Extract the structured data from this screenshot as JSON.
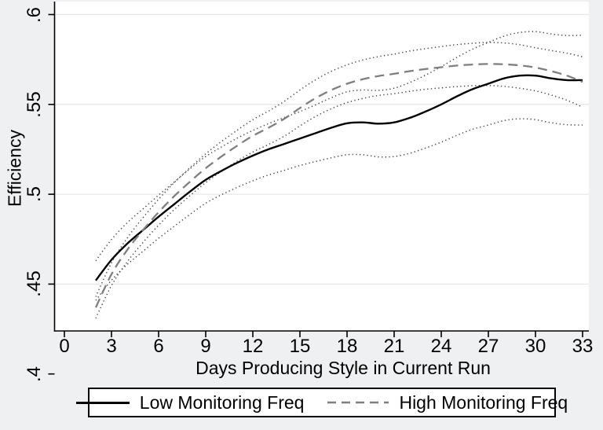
{
  "chart_data": {
    "type": "line",
    "title": "",
    "xlabel": "Days Producing Style in Current Run",
    "ylabel": "Efficiency",
    "xlim": [
      0,
      33
    ],
    "ylim": [
      0.4,
      0.6
    ],
    "grid": true,
    "legend_position": "bottom",
    "x_ticks": [
      {
        "label": "0",
        "value": 0
      },
      {
        "label": "3",
        "value": 3
      },
      {
        "label": "6",
        "value": 6
      },
      {
        "label": "9",
        "value": 9
      },
      {
        "label": "12",
        "value": 12
      },
      {
        "label": "15",
        "value": 15
      },
      {
        "label": "18",
        "value": 18
      },
      {
        "label": "21",
        "value": 21
      },
      {
        "label": "24",
        "value": 24
      },
      {
        "label": "27",
        "value": 27
      },
      {
        "label": "30",
        "value": 30
      },
      {
        "label": "33",
        "value": 33
      }
    ],
    "y_ticks": [
      {
        "label": ".6",
        "value": 0.6
      },
      {
        "label": ".55",
        "value": 0.55
      },
      {
        "label": ".5",
        "value": 0.5
      },
      {
        "label": ".45",
        "value": 0.45
      },
      {
        "label": ".4",
        "value": 0.4
      }
    ],
    "x": [
      2,
      3,
      4,
      5,
      6,
      7,
      8,
      9,
      10,
      11,
      12,
      13,
      14,
      15,
      16,
      17,
      18,
      19,
      20,
      21,
      22,
      23,
      24,
      25,
      26,
      27,
      28,
      29,
      30,
      31,
      32,
      33
    ],
    "series": [
      {
        "name": "Low Monitoring Freq",
        "role": "mean",
        "style": "solid",
        "color": "#000000",
        "values": [
          0.452,
          0.4635,
          0.4725,
          0.48,
          0.4875,
          0.4945,
          0.5015,
          0.508,
          0.513,
          0.5175,
          0.5215,
          0.525,
          0.528,
          0.531,
          0.534,
          0.537,
          0.5395,
          0.54,
          0.5393,
          0.54,
          0.5425,
          0.546,
          0.55,
          0.5545,
          0.5585,
          0.5615,
          0.5645,
          0.566,
          0.566,
          0.5645,
          0.5635,
          0.5635
        ]
      },
      {
        "name": "High Monitoring Freq",
        "role": "mean",
        "style": "dashed",
        "color": "#7f7f7f",
        "values": [
          0.437,
          0.4555,
          0.469,
          0.48,
          0.49,
          0.499,
          0.507,
          0.5145,
          0.521,
          0.527,
          0.5325,
          0.537,
          0.542,
          0.548,
          0.5535,
          0.558,
          0.5615,
          0.564,
          0.5658,
          0.567,
          0.5685,
          0.5697,
          0.5707,
          0.5716,
          0.5722,
          0.5725,
          0.5723,
          0.5717,
          0.5705,
          0.5685,
          0.566,
          0.5625
        ]
      },
      {
        "name": "Low Monitoring Freq CI upper",
        "role": "ci",
        "style": "dotted",
        "color": "#424242",
        "values": [
          0.463,
          0.4748,
          0.4841,
          0.4918,
          0.4995,
          0.5068,
          0.5142,
          0.521,
          0.5263,
          0.5312,
          0.5355,
          0.5393,
          0.5427,
          0.546,
          0.5498,
          0.5537,
          0.557,
          0.558,
          0.5578,
          0.559,
          0.5622,
          0.5663,
          0.571,
          0.5762,
          0.5808,
          0.5845,
          0.588,
          0.59,
          0.5905,
          0.5892,
          0.5883,
          0.5885
        ]
      },
      {
        "name": "Low Monitoring Freq CI lower",
        "role": "ci",
        "style": "dotted",
        "color": "#424242",
        "values": [
          0.441,
          0.4522,
          0.4609,
          0.4682,
          0.4755,
          0.4822,
          0.4888,
          0.495,
          0.4997,
          0.5038,
          0.5075,
          0.5107,
          0.5133,
          0.516,
          0.5182,
          0.5203,
          0.522,
          0.522,
          0.5208,
          0.521,
          0.5228,
          0.5257,
          0.529,
          0.5328,
          0.5362,
          0.5385,
          0.541,
          0.542,
          0.5415,
          0.5398,
          0.5387,
          0.5385
        ]
      },
      {
        "name": "High Monitoring Freq CI upper",
        "role": "ci",
        "style": "dotted",
        "color": "#424242",
        "values": [
          0.443,
          0.4618,
          0.4756,
          0.4869,
          0.4972,
          0.5065,
          0.5148,
          0.5225,
          0.5293,
          0.5356,
          0.5415,
          0.5463,
          0.5517,
          0.558,
          0.5637,
          0.5684,
          0.572,
          0.5747,
          0.5766,
          0.578,
          0.5797,
          0.581,
          0.5822,
          0.5833,
          0.584,
          0.5845,
          0.5842,
          0.5832,
          0.5815,
          0.58,
          0.5785,
          0.5765
        ]
      },
      {
        "name": "High Monitoring Freq CI lower",
        "role": "ci",
        "style": "dotted",
        "color": "#424242",
        "values": [
          0.431,
          0.4492,
          0.4624,
          0.4731,
          0.4828,
          0.4915,
          0.4992,
          0.5065,
          0.5127,
          0.5184,
          0.5235,
          0.5277,
          0.5323,
          0.538,
          0.5433,
          0.5476,
          0.551,
          0.5533,
          0.555,
          0.556,
          0.5573,
          0.5584,
          0.5592,
          0.5599,
          0.5604,
          0.5605,
          0.56,
          0.559,
          0.5575,
          0.5552,
          0.5523,
          0.5485
        ]
      }
    ],
    "legend": {
      "entries": [
        "Low Monitoring Freq",
        "High Monitoring Freq"
      ]
    }
  },
  "colors": {
    "background": "#eff0f2",
    "plot_background": "#ffffff",
    "gridline": "#e6e8ea",
    "axis": "#000000",
    "low_line": "#000000",
    "high_line": "#7f7f7f",
    "ci_line": "#424242"
  }
}
